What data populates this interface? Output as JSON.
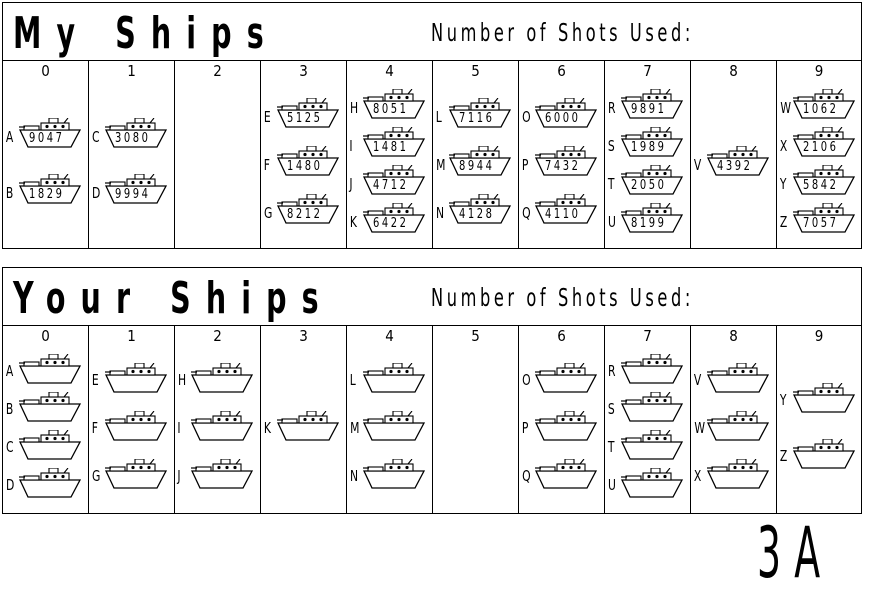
{
  "my": {
    "title": "My Ships",
    "shots_label": "Number of Shots Used:",
    "columns": [
      {
        "label": "0",
        "ships": [
          {
            "letter": "A",
            "code": "9047"
          },
          {
            "letter": "B",
            "code": "1829"
          }
        ]
      },
      {
        "label": "1",
        "ships": [
          {
            "letter": "C",
            "code": "3080"
          },
          {
            "letter": "D",
            "code": "9994"
          }
        ]
      },
      {
        "label": "2",
        "ships": []
      },
      {
        "label": "3",
        "ships": [
          {
            "letter": "E",
            "code": "5125"
          },
          {
            "letter": "F",
            "code": "1480"
          },
          {
            "letter": "G",
            "code": "8212"
          }
        ]
      },
      {
        "label": "4",
        "ships": [
          {
            "letter": "H",
            "code": "8051"
          },
          {
            "letter": "I",
            "code": "1481"
          },
          {
            "letter": "J",
            "code": "4712"
          },
          {
            "letter": "K",
            "code": "6422"
          }
        ]
      },
      {
        "label": "5",
        "ships": [
          {
            "letter": "L",
            "code": "7116"
          },
          {
            "letter": "M",
            "code": "8944"
          },
          {
            "letter": "N",
            "code": "4128"
          }
        ]
      },
      {
        "label": "6",
        "ships": [
          {
            "letter": "O",
            "code": "6000"
          },
          {
            "letter": "P",
            "code": "7432"
          },
          {
            "letter": "Q",
            "code": "4110"
          }
        ]
      },
      {
        "label": "7",
        "ships": [
          {
            "letter": "R",
            "code": "9891"
          },
          {
            "letter": "S",
            "code": "1989"
          },
          {
            "letter": "T",
            "code": "2050"
          },
          {
            "letter": "U",
            "code": "8199"
          }
        ]
      },
      {
        "label": "8",
        "ships": [
          {
            "letter": "V",
            "code": "4392"
          }
        ]
      },
      {
        "label": "9",
        "ships": [
          {
            "letter": "W",
            "code": "1062"
          },
          {
            "letter": "X",
            "code": "2106"
          },
          {
            "letter": "Y",
            "code": "5842"
          },
          {
            "letter": "Z",
            "code": "7057"
          }
        ]
      }
    ]
  },
  "your": {
    "title": "Your Ships",
    "shots_label": "Number of Shots Used:",
    "columns": [
      {
        "label": "0",
        "ships": [
          {
            "letter": "A",
            "code": ""
          },
          {
            "letter": "B",
            "code": ""
          },
          {
            "letter": "C",
            "code": ""
          },
          {
            "letter": "D",
            "code": ""
          }
        ]
      },
      {
        "label": "1",
        "ships": [
          {
            "letter": "E",
            "code": ""
          },
          {
            "letter": "F",
            "code": ""
          },
          {
            "letter": "G",
            "code": ""
          }
        ]
      },
      {
        "label": "2",
        "ships": [
          {
            "letter": "H",
            "code": ""
          },
          {
            "letter": "I",
            "code": ""
          },
          {
            "letter": "J",
            "code": ""
          }
        ]
      },
      {
        "label": "3",
        "ships": [
          {
            "letter": "K",
            "code": ""
          }
        ]
      },
      {
        "label": "4",
        "ships": [
          {
            "letter": "L",
            "code": ""
          },
          {
            "letter": "M",
            "code": ""
          },
          {
            "letter": "N",
            "code": ""
          }
        ]
      },
      {
        "label": "5",
        "ships": []
      },
      {
        "label": "6",
        "ships": [
          {
            "letter": "O",
            "code": ""
          },
          {
            "letter": "P",
            "code": ""
          },
          {
            "letter": "Q",
            "code": ""
          }
        ]
      },
      {
        "label": "7",
        "ships": [
          {
            "letter": "R",
            "code": ""
          },
          {
            "letter": "S",
            "code": ""
          },
          {
            "letter": "T",
            "code": ""
          },
          {
            "letter": "U",
            "code": ""
          }
        ]
      },
      {
        "label": "8",
        "ships": [
          {
            "letter": "V",
            "code": ""
          },
          {
            "letter": "W",
            "code": ""
          },
          {
            "letter": "X",
            "code": ""
          }
        ]
      },
      {
        "label": "9",
        "ships": [
          {
            "letter": "Y",
            "code": ""
          },
          {
            "letter": "Z",
            "code": ""
          }
        ]
      }
    ]
  },
  "sheet_id": "3A",
  "icons": {
    "ship": "ship-icon"
  }
}
